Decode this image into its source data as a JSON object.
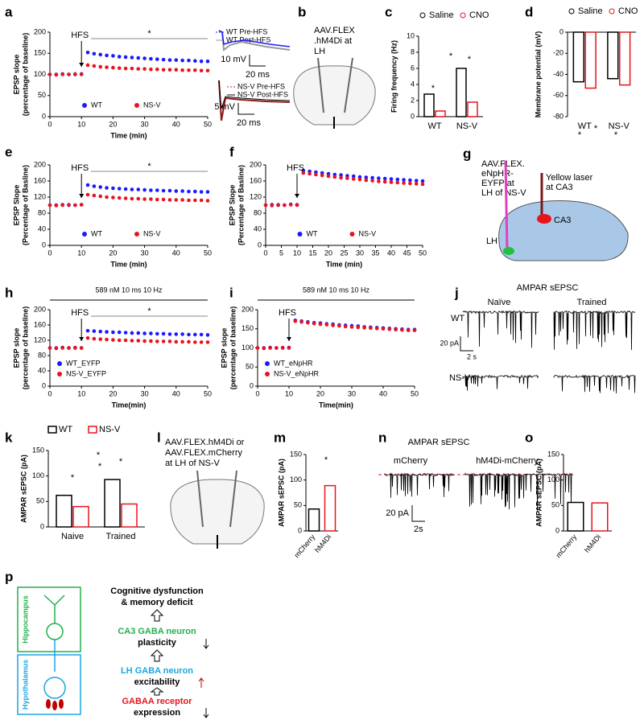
{
  "chart_data": [
    {
      "type": "line",
      "ylabel": [
        "EPSP slope",
        "(percentage of baseline)"
      ],
      "xlabel": "Time (min)",
      "xlim": [
        0,
        50
      ],
      "xticks": [
        0,
        10,
        20,
        30,
        40,
        50
      ],
      "ylim": [
        0,
        200
      ],
      "yticks": [
        0,
        50,
        100,
        150,
        200
      ],
      "legend": "lower center",
      "annotations": [
        "HFS",
        "*"
      ],
      "x": [
        0,
        2,
        4,
        6,
        8,
        10,
        12,
        14,
        16,
        18,
        20,
        22,
        24,
        26,
        28,
        30,
        32,
        34,
        36,
        38,
        40,
        42,
        44,
        46,
        48,
        50
      ],
      "series": [
        {
          "name": "WT",
          "color": "#1a1aff",
          "values": [
            100,
            100,
            101,
            100,
            100,
            101,
            152,
            149,
            147,
            145,
            144,
            142,
            141,
            140,
            139,
            138,
            137,
            136,
            135,
            134,
            134,
            133,
            133,
            132,
            131,
            131
          ]
        },
        {
          "name": "NS-V",
          "color": "#e8141c",
          "values": [
            100,
            99,
            100,
            100,
            101,
            100,
            122,
            120,
            118,
            117,
            116,
            115,
            114,
            114,
            113,
            113,
            112,
            112,
            111,
            111,
            111,
            110,
            110,
            110,
            109,
            109
          ]
        }
      ]
    },
    {
      "type": "bar",
      "ylabel": [
        "Firing frequency (Hz)"
      ],
      "categories": [
        "WT",
        "NS-V"
      ],
      "ylim": [
        0,
        10
      ],
      "yticks": [
        0,
        2,
        4,
        6,
        8,
        10
      ],
      "annotations": [
        "*",
        "*",
        "*"
      ],
      "series": [
        {
          "name": "Saline",
          "color": "#000000",
          "values": [
            2.8,
            6.0
          ]
        },
        {
          "name": "CNO",
          "color": "#e8141c",
          "values": [
            0.7,
            1.8
          ]
        }
      ]
    },
    {
      "type": "bar",
      "ylabel": [
        "Membrane potential (mV)"
      ],
      "categories": [
        "WT",
        "NS-V"
      ],
      "ylim": [
        -80,
        0
      ],
      "yticks": [
        0,
        -20,
        -40,
        -60,
        -80
      ],
      "annotations": [
        "*",
        "*",
        "*"
      ],
      "series": [
        {
          "name": "Saline",
          "color": "#000000",
          "values": [
            -47,
            -44
          ]
        },
        {
          "name": "CNO",
          "color": "#e8141c",
          "values": [
            -53,
            -50
          ]
        }
      ]
    },
    {
      "type": "line",
      "ylabel": [
        "EPSP Slope",
        "(Percentage of Basline)"
      ],
      "xlabel": "Time (min)",
      "xlim": [
        0,
        50
      ],
      "xticks": [
        0,
        10,
        20,
        30,
        40,
        50
      ],
      "ylim": [
        0,
        200
      ],
      "yticks": [
        0,
        40,
        80,
        120,
        160,
        200
      ],
      "legend": "lower center",
      "annotations": [
        "HFS",
        "*"
      ],
      "x": [
        0,
        2,
        4,
        6,
        8,
        10,
        12,
        14,
        16,
        18,
        20,
        22,
        24,
        26,
        28,
        30,
        32,
        34,
        36,
        38,
        40,
        42,
        44,
        46,
        48,
        50
      ],
      "series": [
        {
          "name": "WT",
          "color": "#1a1aff",
          "values": [
            100,
            100,
            101,
            100,
            100,
            101,
            150,
            147,
            145,
            143,
            142,
            141,
            140,
            139,
            139,
            138,
            137,
            137,
            136,
            136,
            135,
            135,
            134,
            134,
            133,
            133
          ]
        },
        {
          "name": "NS-V",
          "color": "#e8141c",
          "values": [
            100,
            99,
            100,
            101,
            100,
            101,
            126,
            124,
            122,
            120,
            119,
            118,
            117,
            116,
            116,
            115,
            115,
            114,
            114,
            113,
            113,
            113,
            112,
            112,
            112,
            111
          ]
        }
      ]
    },
    {
      "type": "line",
      "ylabel": [
        "EPSP Slope",
        "(Percentage of Basline)"
      ],
      "xlabel": "Time (min)",
      "xlim": [
        0,
        50
      ],
      "xticks": [
        0,
        5,
        10,
        15,
        20,
        25,
        30,
        35,
        40,
        45,
        50
      ],
      "ylim": [
        0,
        200
      ],
      "yticks": [
        0,
        40,
        80,
        120,
        160,
        200
      ],
      "legend": "lower center",
      "annotations": [
        "HFS"
      ],
      "x": [
        0,
        2,
        4,
        6,
        8,
        10,
        12,
        14,
        16,
        18,
        20,
        22,
        24,
        26,
        28,
        30,
        32,
        34,
        36,
        38,
        40,
        42,
        44,
        46,
        48,
        50
      ],
      "series": [
        {
          "name": "WT",
          "color": "#1a1aff",
          "values": [
            100,
            101,
            100,
            100,
            102,
            101,
            186,
            184,
            182,
            180,
            178,
            176,
            175,
            173,
            172,
            170,
            169,
            168,
            167,
            166,
            165,
            164,
            163,
            162,
            161,
            160
          ]
        },
        {
          "name": "NS-V",
          "color": "#e8141c",
          "values": [
            100,
            99,
            101,
            100,
            101,
            100,
            180,
            178,
            176,
            174,
            172,
            170,
            168,
            167,
            165,
            164,
            162,
            161,
            159,
            158,
            157,
            156,
            155,
            154,
            153,
            152
          ]
        }
      ]
    },
    {
      "type": "line",
      "title": "589 nM 10 ms 10 Hz",
      "ylabel": [
        "EPSP slope",
        "(percentage of baseline)"
      ],
      "xlabel": "Time(min)",
      "xlim": [
        0,
        50
      ],
      "xticks": [
        0,
        10,
        20,
        30,
        40,
        50
      ],
      "ylim": [
        0,
        200
      ],
      "yticks": [
        0,
        40,
        80,
        120,
        160,
        200
      ],
      "legend": "lower left",
      "annotations": [
        "HFS",
        "*"
      ],
      "x": [
        0,
        2,
        4,
        6,
        8,
        10,
        12,
        14,
        16,
        18,
        20,
        22,
        24,
        26,
        28,
        30,
        32,
        34,
        36,
        38,
        40,
        42,
        44,
        46,
        48,
        50
      ],
      "series": [
        {
          "name": "WT_EYFP",
          "color": "#1a1aff",
          "values": [
            100,
            100,
            101,
            100,
            100,
            100,
            145,
            144,
            143,
            142,
            141,
            141,
            140,
            139,
            139,
            138,
            138,
            137,
            137,
            136,
            136,
            136,
            135,
            135,
            135,
            134
          ]
        },
        {
          "name": "NS-V_EYFP",
          "color": "#e8141c",
          "values": [
            100,
            99,
            100,
            100,
            101,
            100,
            126,
            124,
            123,
            122,
            121,
            120,
            120,
            119,
            119,
            118,
            118,
            117,
            117,
            117,
            116,
            116,
            116,
            115,
            115,
            115
          ]
        }
      ]
    },
    {
      "type": "line",
      "title": "589 nM 10 ms 10 Hz",
      "ylabel": [
        "EPSP slope",
        "(percentage of baseline)"
      ],
      "xlabel": "Time(min)",
      "xlim": [
        0,
        50
      ],
      "xticks": [
        0,
        10,
        20,
        30,
        40,
        50
      ],
      "ylim": [
        0,
        200
      ],
      "yticks": [
        0,
        50,
        100,
        150,
        200
      ],
      "legend": "lower left",
      "annotations": [
        "HFS"
      ],
      "x": [
        0,
        2,
        4,
        6,
        8,
        10,
        12,
        14,
        16,
        18,
        20,
        22,
        24,
        26,
        28,
        30,
        32,
        34,
        36,
        38,
        40,
        42,
        44,
        46,
        48,
        50
      ],
      "series": [
        {
          "name": "WT_eNpHR",
          "color": "#1a1aff",
          "values": [
            100,
            100,
            101,
            100,
            100,
            101,
            172,
            170,
            168,
            166,
            165,
            163,
            162,
            160,
            159,
            158,
            157,
            155,
            154,
            153,
            152,
            151,
            150,
            149,
            148,
            148
          ]
        },
        {
          "name": "NS-V_eNpHR",
          "color": "#e8141c",
          "values": [
            100,
            99,
            100,
            100,
            101,
            100,
            170,
            168,
            166,
            164,
            162,
            161,
            159,
            158,
            156,
            155,
            154,
            153,
            152,
            151,
            150,
            149,
            148,
            147,
            146,
            146
          ]
        }
      ]
    },
    {
      "type": "bar",
      "ylabel": [
        "AMPAR sEPSC (pA)"
      ],
      "categories": [
        "Naive",
        "Trained"
      ],
      "ylim": [
        0,
        150
      ],
      "yticks": [
        0,
        50,
        100,
        150
      ],
      "legend_marker": "square",
      "annotations": [
        "*",
        "*",
        "*",
        "*"
      ],
      "series": [
        {
          "name": "WT",
          "color": "#000000",
          "values": [
            62,
            93
          ]
        },
        {
          "name": "NS-V",
          "color": "#e8141c",
          "values": [
            40,
            45
          ]
        }
      ]
    },
    {
      "type": "bar",
      "ylabel": [
        "AMPAR sEPSC (pA)"
      ],
      "categories": [
        "mCherry",
        "hM4Di"
      ],
      "ylim": [
        0,
        150
      ],
      "yticks": [
        0,
        50,
        100,
        150
      ],
      "annotations": [
        "*"
      ],
      "values": [
        43,
        89
      ],
      "colors": [
        "#000000",
        "#e8141c"
      ]
    },
    {
      "type": "bar",
      "ylabel": [
        "AMPAR sEPSC (pA)"
      ],
      "categories": [
        "mCherry",
        "hM4Di"
      ],
      "ylim": [
        0,
        150
      ],
      "yticks": [
        0,
        50,
        100,
        150
      ],
      "values": [
        56,
        55
      ],
      "colors": [
        "#000000",
        "#e8141c"
      ]
    }
  ],
  "figure": {
    "panel_labels": [
      "a",
      "b",
      "c",
      "d",
      "e",
      "f",
      "g",
      "h",
      "i",
      "j",
      "k",
      "l",
      "m",
      "n",
      "o",
      "p"
    ],
    "a_inset": {
      "legend_top": [
        "WT Pre-HFS",
        "WT Post-HFS"
      ],
      "scale_top": [
        "10 mV",
        "20 ms"
      ],
      "legend_bottom": [
        "NS-V Pre-HFS",
        "NS-V Post-HFS"
      ],
      "scale_bottom": [
        "5 mV",
        "20 ms"
      ]
    },
    "b": {
      "label": [
        "AAV.FLEX",
        ".hM4Di at",
        "LH"
      ]
    },
    "g": {
      "virus": [
        "AAV.FLEX.",
        "eNpHR-",
        "EYFP at",
        "LH of NS-V"
      ],
      "laser": [
        "Yellow laser",
        "at CA3"
      ],
      "ca3": "CA3",
      "lh": "LH"
    },
    "j": {
      "title": "AMPAR sEPSC",
      "columns": [
        "Naïve",
        "Trained"
      ],
      "rows": [
        "WT",
        "NS-V"
      ],
      "scale": [
        "20 pA",
        "2 s"
      ]
    },
    "l": {
      "label": [
        "AAV.FLEX.hM4Di or",
        "AAV.FLEX.mCherry",
        "at LH of NS-V"
      ]
    },
    "n": {
      "title": "AMPAR sEPSC",
      "columns": [
        "mCherry",
        "hM4Di-mCherry"
      ],
      "scale": [
        "20 pA",
        "2s"
      ]
    },
    "p": {
      "regions": [
        "Hippocampus",
        "Hypothalamus"
      ],
      "steps": [
        [
          "Cognitive dysfunction",
          "& memory deficit"
        ],
        [
          "CA3 GABA neuron",
          "plasticity"
        ],
        [
          "LH GABA neuron",
          "excitability"
        ],
        [
          "GABAA receptor",
          "expression"
        ]
      ]
    }
  }
}
